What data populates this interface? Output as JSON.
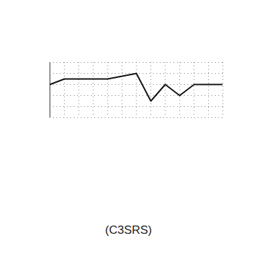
{
  "chart_data": {
    "type": "line",
    "title": "(C3SRS)",
    "x": [
      0,
      1,
      2,
      3,
      4,
      5,
      6,
      7,
      8,
      9,
      10,
      11,
      12
    ],
    "values": [
      6,
      7,
      7,
      7,
      7,
      7.5,
      8,
      3,
      6,
      4,
      6,
      6,
      6
    ],
    "color": "#111111",
    "xlim": [
      0,
      12
    ],
    "ylim": [
      0,
      10
    ],
    "xticks": [
      0,
      1,
      2,
      3,
      4,
      5,
      6,
      7,
      8,
      9,
      10,
      11,
      12
    ],
    "yticks": [
      0,
      2,
      4,
      6,
      8,
      10
    ],
    "grid": true,
    "tick_labels": false
  }
}
